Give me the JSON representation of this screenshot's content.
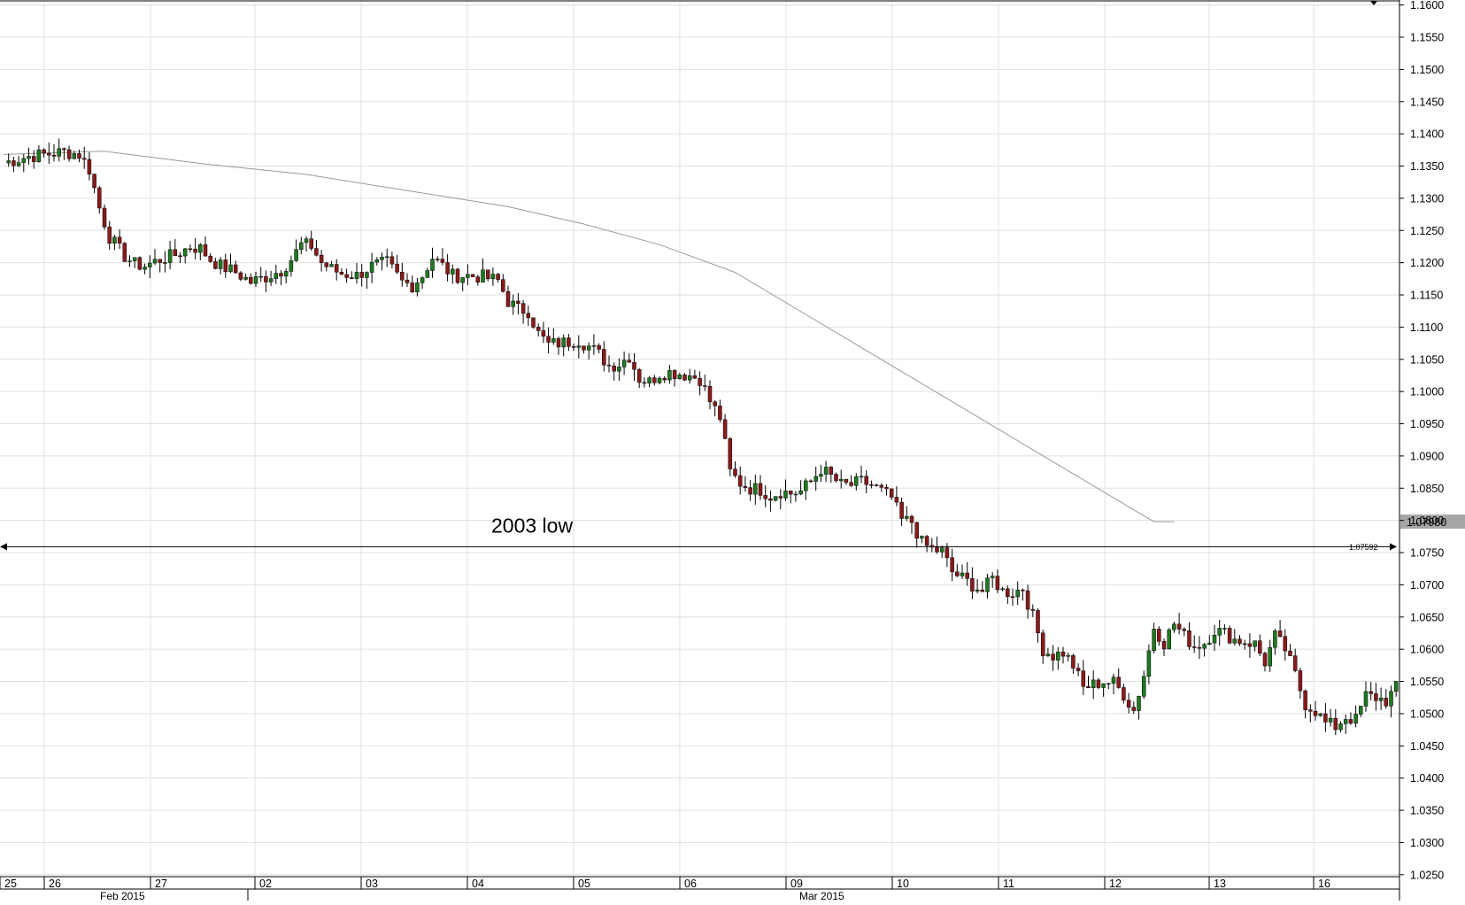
{
  "chart_data": {
    "type": "candlestick",
    "title": "",
    "xlabel": "",
    "ylabel": "",
    "ylim": [
      1.0225,
      1.1605
    ],
    "grid": true,
    "y_ticks": [
      "1.1600",
      "1.1550",
      "1.1500",
      "1.1450",
      "1.1400",
      "1.1350",
      "1.1300",
      "1.1250",
      "1.1200",
      "1.1150",
      "1.1100",
      "1.1050",
      "1.1000",
      "1.0950",
      "1.0900",
      "1.0850",
      "1.0800",
      "1.0750",
      "1.0700",
      "1.0650",
      "1.0600",
      "1.0550",
      "1.0500",
      "1.0450",
      "1.0400",
      "1.0350",
      "1.0300",
      "1.0250"
    ],
    "day_labels": [
      "25",
      "26",
      "27",
      "02",
      "03",
      "04",
      "05",
      "06",
      "09",
      "10",
      "11",
      "12",
      "13",
      "16"
    ],
    "month_labels": [
      "Feb 2015",
      "Mar 2015"
    ],
    "price_path": [
      [
        0,
        1.1355
      ],
      [
        5,
        1.1365
      ],
      [
        12,
        1.1372
      ],
      [
        15,
        1.1368
      ],
      [
        17,
        1.1345
      ],
      [
        19,
        1.1285
      ],
      [
        21,
        1.124
      ],
      [
        24,
        1.121
      ],
      [
        26,
        1.1198
      ],
      [
        28,
        1.1195
      ],
      [
        31,
        1.1205
      ],
      [
        34,
        1.1212
      ],
      [
        37,
        1.1225
      ],
      [
        39,
        1.1222
      ],
      [
        41,
        1.1205
      ],
      [
        43,
        1.1195
      ],
      [
        46,
        1.1185
      ],
      [
        49,
        1.117
      ],
      [
        52,
        1.1178
      ],
      [
        55,
        1.1188
      ],
      [
        57,
        1.1205
      ],
      [
        59,
        1.1228
      ],
      [
        61,
        1.1226
      ],
      [
        63,
        1.12
      ],
      [
        65,
        1.119
      ],
      [
        67,
        1.1183
      ],
      [
        70,
        1.118
      ],
      [
        73,
        1.1195
      ],
      [
        76,
        1.12
      ],
      [
        79,
        1.117
      ],
      [
        81,
        1.1165
      ],
      [
        83,
        1.118
      ],
      [
        85,
        1.1208
      ],
      [
        87,
        1.1195
      ],
      [
        89,
        1.118
      ],
      [
        92,
        1.118
      ],
      [
        95,
        1.1178
      ],
      [
        98,
        1.1172
      ],
      [
        100,
        1.114
      ],
      [
        102,
        1.1128
      ],
      [
        104,
        1.1125
      ],
      [
        106,
        1.109
      ],
      [
        108,
        1.1073
      ],
      [
        111,
        1.1076
      ],
      [
        114,
        1.108
      ],
      [
        116,
        1.107
      ],
      [
        118,
        1.1058
      ],
      [
        120,
        1.104
      ],
      [
        122,
        1.1043
      ],
      [
        124,
        1.1055
      ],
      [
        126,
        1.102
      ],
      [
        128,
        1.1015
      ],
      [
        130,
        1.1028
      ],
      [
        132,
        1.103
      ],
      [
        134,
        1.1028
      ],
      [
        136,
        1.1025
      ],
      [
        138,
        1.102
      ],
      [
        140,
        1.0985
      ],
      [
        142,
        1.096
      ],
      [
        144,
        1.0875
      ],
      [
        146,
        1.0858
      ],
      [
        148,
        1.085
      ],
      [
        150,
        1.0848
      ],
      [
        152,
        1.0838
      ],
      [
        154,
        1.0845
      ],
      [
        156,
        1.0842
      ],
      [
        158,
        1.0845
      ],
      [
        160,
        1.086
      ],
      [
        162,
        1.088
      ],
      [
        164,
        1.0868
      ],
      [
        166,
        1.0855
      ],
      [
        168,
        1.0855
      ],
      [
        170,
        1.086
      ],
      [
        172,
        1.0855
      ],
      [
        174,
        1.0845
      ],
      [
        176,
        1.0835
      ],
      [
        178,
        1.08
      ],
      [
        180,
        1.0798
      ],
      [
        182,
        1.0765
      ],
      [
        184,
        1.0755
      ],
      [
        186,
        1.0752
      ],
      [
        188,
        1.072
      ],
      [
        190,
        1.071
      ],
      [
        192,
        1.07
      ],
      [
        194,
        1.069
      ],
      [
        196,
        1.071
      ],
      [
        198,
        1.069
      ],
      [
        200,
        1.0688
      ],
      [
        202,
        1.0695
      ],
      [
        204,
        1.065
      ],
      [
        206,
        1.06
      ],
      [
        208,
        1.059
      ],
      [
        210,
        1.0595
      ],
      [
        212,
        1.0575
      ],
      [
        214,
        1.054
      ],
      [
        216,
        1.0545
      ],
      [
        218,
        1.055
      ],
      [
        220,
        1.0548
      ],
      [
        222,
        1.053
      ],
      [
        224,
        1.0505
      ],
      [
        226,
        1.056
      ],
      [
        228,
        1.0635
      ],
      [
        230,
        1.061
      ],
      [
        232,
        1.064
      ],
      [
        234,
        1.062
      ],
      [
        236,
        1.0605
      ],
      [
        238,
        1.061
      ],
      [
        240,
        1.063
      ],
      [
        242,
        1.0625
      ],
      [
        244,
        1.0615
      ],
      [
        246,
        1.0612
      ],
      [
        248,
        1.0608
      ],
      [
        250,
        1.058
      ],
      [
        252,
        1.062
      ],
      [
        254,
        1.06
      ],
      [
        256,
        1.056
      ],
      [
        258,
        1.0515
      ],
      [
        260,
        1.0505
      ],
      [
        262,
        1.0485
      ],
      [
        264,
        1.048
      ],
      [
        266,
        1.0495
      ],
      [
        268,
        1.049
      ],
      [
        270,
        1.0528
      ],
      [
        272,
        1.0525
      ],
      [
        274,
        1.052
      ],
      [
        276,
        1.054
      ]
    ],
    "moving_average": [
      [
        0,
        1.1368
      ],
      [
        20,
        1.1373
      ],
      [
        40,
        1.1353
      ],
      [
        60,
        1.1337
      ],
      [
        80,
        1.1312
      ],
      [
        100,
        1.1287
      ],
      [
        115,
        1.126
      ],
      [
        130,
        1.1228
      ],
      [
        145,
        1.1185
      ],
      [
        160,
        1.1115
      ],
      [
        175,
        1.1045
      ],
      [
        190,
        1.0975
      ],
      [
        205,
        1.0905
      ],
      [
        220,
        1.0835
      ],
      [
        228,
        1.0798
      ],
      [
        232,
        1.0798
      ]
    ],
    "annotations": [
      {
        "text": "2003 low",
        "price": 1.07592,
        "label": "1.07592"
      }
    ],
    "last_ma_label": "1.07980",
    "colors": {
      "up": "#1e7a1e",
      "down": "#8b1a1a",
      "wick": "#000000",
      "grid": "#e0e0e0",
      "ma": "#9a9a9a",
      "badge_bg": "#a6a6a6"
    }
  }
}
